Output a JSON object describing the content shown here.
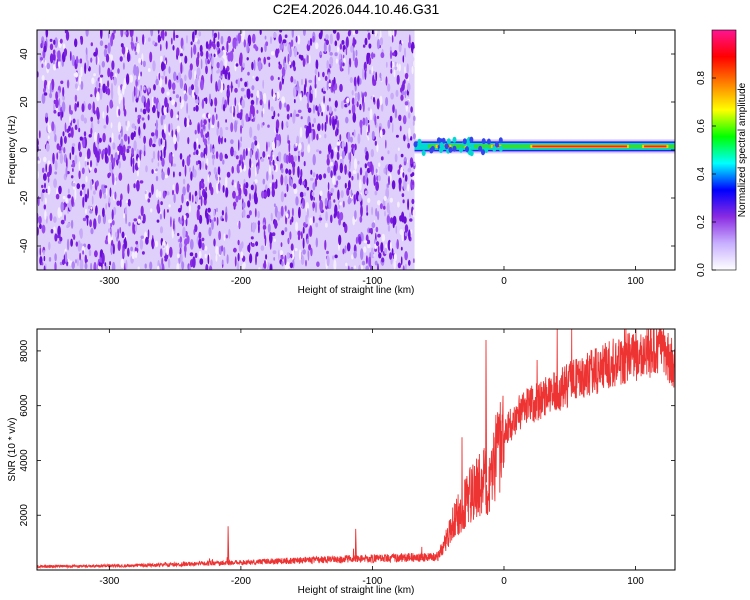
{
  "title": "C2E4.2026.044.10.46.G31",
  "chart_data": [
    {
      "type": "heatmap",
      "xlabel": "Height of straight line (km)",
      "ylabel": "Frequency (Hz)",
      "xlim": [
        -355,
        130
      ],
      "ylim": [
        -50,
        50
      ],
      "xticks": [
        -300,
        -200,
        -100,
        0,
        100
      ],
      "yticks": [
        -40,
        -20,
        0,
        20,
        40
      ],
      "noise_region_x": [
        -355,
        -68
      ],
      "carrier_x": [
        -68,
        130
      ],
      "carrier_freq_hz": 1.5,
      "colorbar": {
        "label": "Normalized spectral amplitude",
        "range": [
          0,
          1
        ],
        "ticks": [
          0.0,
          0.2,
          0.4,
          0.6,
          0.8
        ],
        "colors": [
          "#ffffff",
          "#c8b0ff",
          "#8a2be2",
          "#0000ff",
          "#00ffff",
          "#00ff00",
          "#ffff00",
          "#ff8000",
          "#ff0000",
          "#ff1493"
        ]
      }
    },
    {
      "type": "line",
      "xlabel": "Height of straight line (km)",
      "ylabel": "SNR (10 * v/v)",
      "xlim": [
        -355,
        130
      ],
      "ylim": [
        0,
        8800
      ],
      "xticks": [
        -300,
        -200,
        -100,
        0,
        100
      ],
      "yticks": [
        2000,
        4000,
        6000,
        8000
      ],
      "color": "#ee3333",
      "series": [
        {
          "name": "SNR",
          "x": [
            -355,
            -320,
            -280,
            -250,
            -220,
            -200,
            -180,
            -150,
            -120,
            -100,
            -80,
            -60,
            -50,
            -45,
            -40,
            -35,
            -30,
            -25,
            -20,
            -15,
            -12,
            -10,
            -5,
            0,
            5,
            10,
            20,
            30,
            40,
            50,
            60,
            70,
            80,
            90,
            100,
            110,
            120,
            130
          ],
          "values": [
            130,
            140,
            160,
            200,
            240,
            270,
            310,
            360,
            400,
            420,
            450,
            470,
            500,
            1000,
            1600,
            2000,
            2400,
            2800,
            3000,
            3300,
            3000,
            3600,
            4300,
            4900,
            5300,
            5700,
            6000,
            6300,
            6500,
            6800,
            7000,
            7300,
            7500,
            7700,
            7800,
            7900,
            8200,
            7400
          ]
        }
      ],
      "spikes": [
        {
          "x": -210,
          "y": 1600
        },
        {
          "x": -113,
          "y": 1500
        },
        {
          "x": -14,
          "y": 8400
        },
        {
          "x": 100,
          "y": 8800
        }
      ]
    }
  ]
}
